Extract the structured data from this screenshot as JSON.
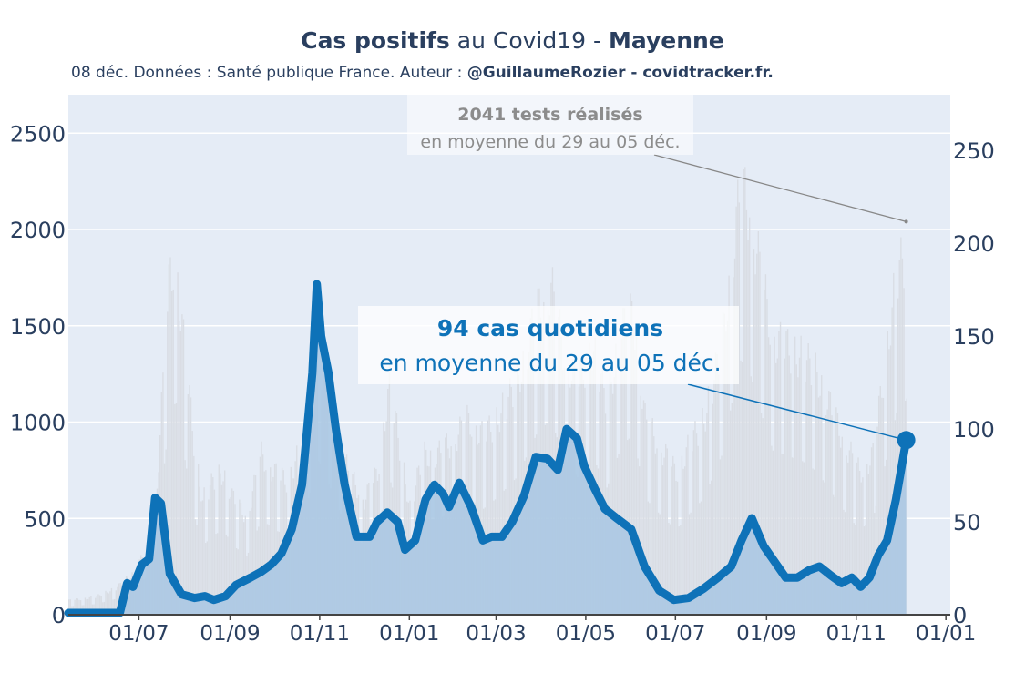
{
  "title": {
    "bold1": "Cas positifs",
    "mid": " au Covid19 - ",
    "bold2": "Mayenne"
  },
  "subtitle": {
    "plain": "08 déc. Données : Santé publique France. Auteur : ",
    "bold": "@GuillaumeRozier - covidtracker.fr."
  },
  "colors": {
    "plot_bg": "#e5ecf6",
    "grid": "#ffffff",
    "tests_bar": "#d9dde4",
    "cases_line": "#0e72b8",
    "cases_fill": "#a8c7e3",
    "text": "#2a3f5f",
    "annotation_tests": "#8c8c8c"
  },
  "chart_data": {
    "type": "line",
    "x_range": [
      "2020-05-14",
      "2022-01-04"
    ],
    "x_ticks": [
      "01/07",
      "01/09",
      "01/11",
      "01/01",
      "01/03",
      "01/05",
      "01/07",
      "01/09",
      "01/11",
      "01/01"
    ],
    "x_tick_dates": [
      "2020-07-01",
      "2020-09-01",
      "2020-11-01",
      "2021-01-01",
      "2021-03-01",
      "2021-05-01",
      "2021-07-01",
      "2021-09-01",
      "2021-11-01",
      "2022-01-01"
    ],
    "y_left": {
      "range": [
        0,
        2700
      ],
      "ticks": [
        0,
        500,
        1000,
        1500,
        2000,
        2500
      ]
    },
    "y_right": {
      "range": [
        0,
        280
      ],
      "ticks": [
        0,
        50,
        100,
        150,
        200,
        250
      ]
    },
    "grid": true,
    "series": [
      {
        "name": "tests réalisés",
        "axis": "left",
        "type": "bar",
        "points": [
          [
            "2020-05-14",
            80
          ],
          [
            "2020-06-01",
            100
          ],
          [
            "2020-06-15",
            150
          ],
          [
            "2020-06-25",
            220
          ],
          [
            "2020-07-05",
            350
          ],
          [
            "2020-07-12",
            600
          ],
          [
            "2020-07-17",
            1300
          ],
          [
            "2020-07-22",
            1950
          ],
          [
            "2020-07-26",
            2000
          ],
          [
            "2020-07-29",
            1700
          ],
          [
            "2020-08-03",
            1300
          ],
          [
            "2020-08-08",
            900
          ],
          [
            "2020-08-13",
            650
          ],
          [
            "2020-08-20",
            750
          ],
          [
            "2020-08-27",
            800
          ],
          [
            "2020-09-03",
            650
          ],
          [
            "2020-09-12",
            550
          ],
          [
            "2020-09-22",
            900
          ],
          [
            "2020-10-01",
            800
          ],
          [
            "2020-10-10",
            750
          ],
          [
            "2020-10-17",
            900
          ],
          [
            "2020-10-24",
            1100
          ],
          [
            "2020-10-31",
            1450
          ],
          [
            "2020-11-05",
            1300
          ],
          [
            "2020-11-12",
            1050
          ],
          [
            "2020-11-20",
            800
          ],
          [
            "2020-12-01",
            650
          ],
          [
            "2020-12-10",
            800
          ],
          [
            "2020-12-18",
            1300
          ],
          [
            "2020-12-24",
            1000
          ],
          [
            "2021-01-01",
            600
          ],
          [
            "2021-01-10",
            900
          ],
          [
            "2021-01-20",
            900
          ],
          [
            "2021-02-01",
            1000
          ],
          [
            "2021-02-10",
            1100
          ],
          [
            "2021-02-20",
            1000
          ],
          [
            "2021-03-01",
            1100
          ],
          [
            "2021-03-15",
            1300
          ],
          [
            "2021-03-28",
            1700
          ],
          [
            "2021-04-07",
            1850
          ],
          [
            "2021-04-15",
            1500
          ],
          [
            "2021-04-25",
            1300
          ],
          [
            "2021-05-05",
            1500
          ],
          [
            "2021-05-15",
            1200
          ],
          [
            "2021-05-25",
            1600
          ],
          [
            "2021-06-02",
            1700
          ],
          [
            "2021-06-10",
            1100
          ],
          [
            "2021-06-20",
            950
          ],
          [
            "2021-07-01",
            800
          ],
          [
            "2021-07-10",
            950
          ],
          [
            "2021-07-20",
            1100
          ],
          [
            "2021-08-01",
            1500
          ],
          [
            "2021-08-08",
            2000
          ],
          [
            "2021-08-14",
            2400
          ],
          [
            "2021-08-20",
            2300
          ],
          [
            "2021-08-28",
            1900
          ],
          [
            "2021-09-05",
            1550
          ],
          [
            "2021-09-15",
            1500
          ],
          [
            "2021-09-25",
            1450
          ],
          [
            "2021-10-05",
            1350
          ],
          [
            "2021-10-15",
            1150
          ],
          [
            "2021-10-25",
            950
          ],
          [
            "2021-11-03",
            800
          ],
          [
            "2021-11-12",
            900
          ],
          [
            "2021-11-20",
            1400
          ],
          [
            "2021-11-28",
            1900
          ],
          [
            "2021-12-05",
            2041
          ]
        ]
      },
      {
        "name": "cas quotidiens",
        "axis": "right",
        "type": "line",
        "points": [
          [
            "2020-05-14",
            1
          ],
          [
            "2020-06-18",
            1
          ],
          [
            "2020-06-23",
            17
          ],
          [
            "2020-06-27",
            15
          ],
          [
            "2020-07-03",
            27
          ],
          [
            "2020-07-08",
            30
          ],
          [
            "2020-07-12",
            63
          ],
          [
            "2020-07-16",
            60
          ],
          [
            "2020-07-22",
            22
          ],
          [
            "2020-07-30",
            11
          ],
          [
            "2020-08-08",
            9
          ],
          [
            "2020-08-15",
            10
          ],
          [
            "2020-08-21",
            8
          ],
          [
            "2020-08-29",
            10
          ],
          [
            "2020-09-05",
            16
          ],
          [
            "2020-09-15",
            20
          ],
          [
            "2020-09-22",
            23
          ],
          [
            "2020-09-29",
            27
          ],
          [
            "2020-10-06",
            33
          ],
          [
            "2020-10-13",
            46
          ],
          [
            "2020-10-20",
            70
          ],
          [
            "2020-10-27",
            130
          ],
          [
            "2020-10-30",
            178
          ],
          [
            "2020-11-02",
            150
          ],
          [
            "2020-11-07",
            130
          ],
          [
            "2020-11-12",
            100
          ],
          [
            "2020-11-18",
            70
          ],
          [
            "2020-11-26",
            42
          ],
          [
            "2020-12-05",
            42
          ],
          [
            "2020-12-10",
            50
          ],
          [
            "2020-12-17",
            55
          ],
          [
            "2020-12-24",
            50
          ],
          [
            "2020-12-29",
            35
          ],
          [
            "2021-01-05",
            40
          ],
          [
            "2021-01-12",
            62
          ],
          [
            "2021-01-18",
            70
          ],
          [
            "2021-01-24",
            65
          ],
          [
            "2021-01-28",
            58
          ],
          [
            "2021-02-04",
            71
          ],
          [
            "2021-02-12",
            58
          ],
          [
            "2021-02-20",
            40
          ],
          [
            "2021-02-26",
            42
          ],
          [
            "2021-03-05",
            42
          ],
          [
            "2021-03-12",
            50
          ],
          [
            "2021-03-20",
            64
          ],
          [
            "2021-03-28",
            85
          ],
          [
            "2021-04-05",
            84
          ],
          [
            "2021-04-12",
            78
          ],
          [
            "2021-04-18",
            100
          ],
          [
            "2021-04-25",
            95
          ],
          [
            "2021-04-30",
            80
          ],
          [
            "2021-05-07",
            68
          ],
          [
            "2021-05-14",
            57
          ],
          [
            "2021-05-22",
            52
          ],
          [
            "2021-06-01",
            46
          ],
          [
            "2021-06-10",
            26
          ],
          [
            "2021-06-20",
            13
          ],
          [
            "2021-06-30",
            8
          ],
          [
            "2021-07-10",
            9
          ],
          [
            "2021-07-20",
            14
          ],
          [
            "2021-07-30",
            20
          ],
          [
            "2021-08-08",
            26
          ],
          [
            "2021-08-15",
            40
          ],
          [
            "2021-08-22",
            52
          ],
          [
            "2021-08-30",
            37
          ],
          [
            "2021-09-07",
            28
          ],
          [
            "2021-09-14",
            20
          ],
          [
            "2021-09-22",
            20
          ],
          [
            "2021-09-30",
            24
          ],
          [
            "2021-10-07",
            26
          ],
          [
            "2021-10-15",
            21
          ],
          [
            "2021-10-22",
            17
          ],
          [
            "2021-10-29",
            20
          ],
          [
            "2021-11-04",
            15
          ],
          [
            "2021-11-10",
            20
          ],
          [
            "2021-11-16",
            32
          ],
          [
            "2021-11-22",
            40
          ],
          [
            "2021-11-28",
            62
          ],
          [
            "2021-12-05",
            94
          ]
        ]
      }
    ],
    "annotations": [
      {
        "series": "tests réalisés",
        "bold": "2041 tests réalisés",
        "text": "en moyenne du 29 au 05 déc."
      },
      {
        "series": "cas quotidiens",
        "bold": "94 cas quotidiens",
        "text": "en moyenne du 29 au 05 déc."
      }
    ]
  }
}
